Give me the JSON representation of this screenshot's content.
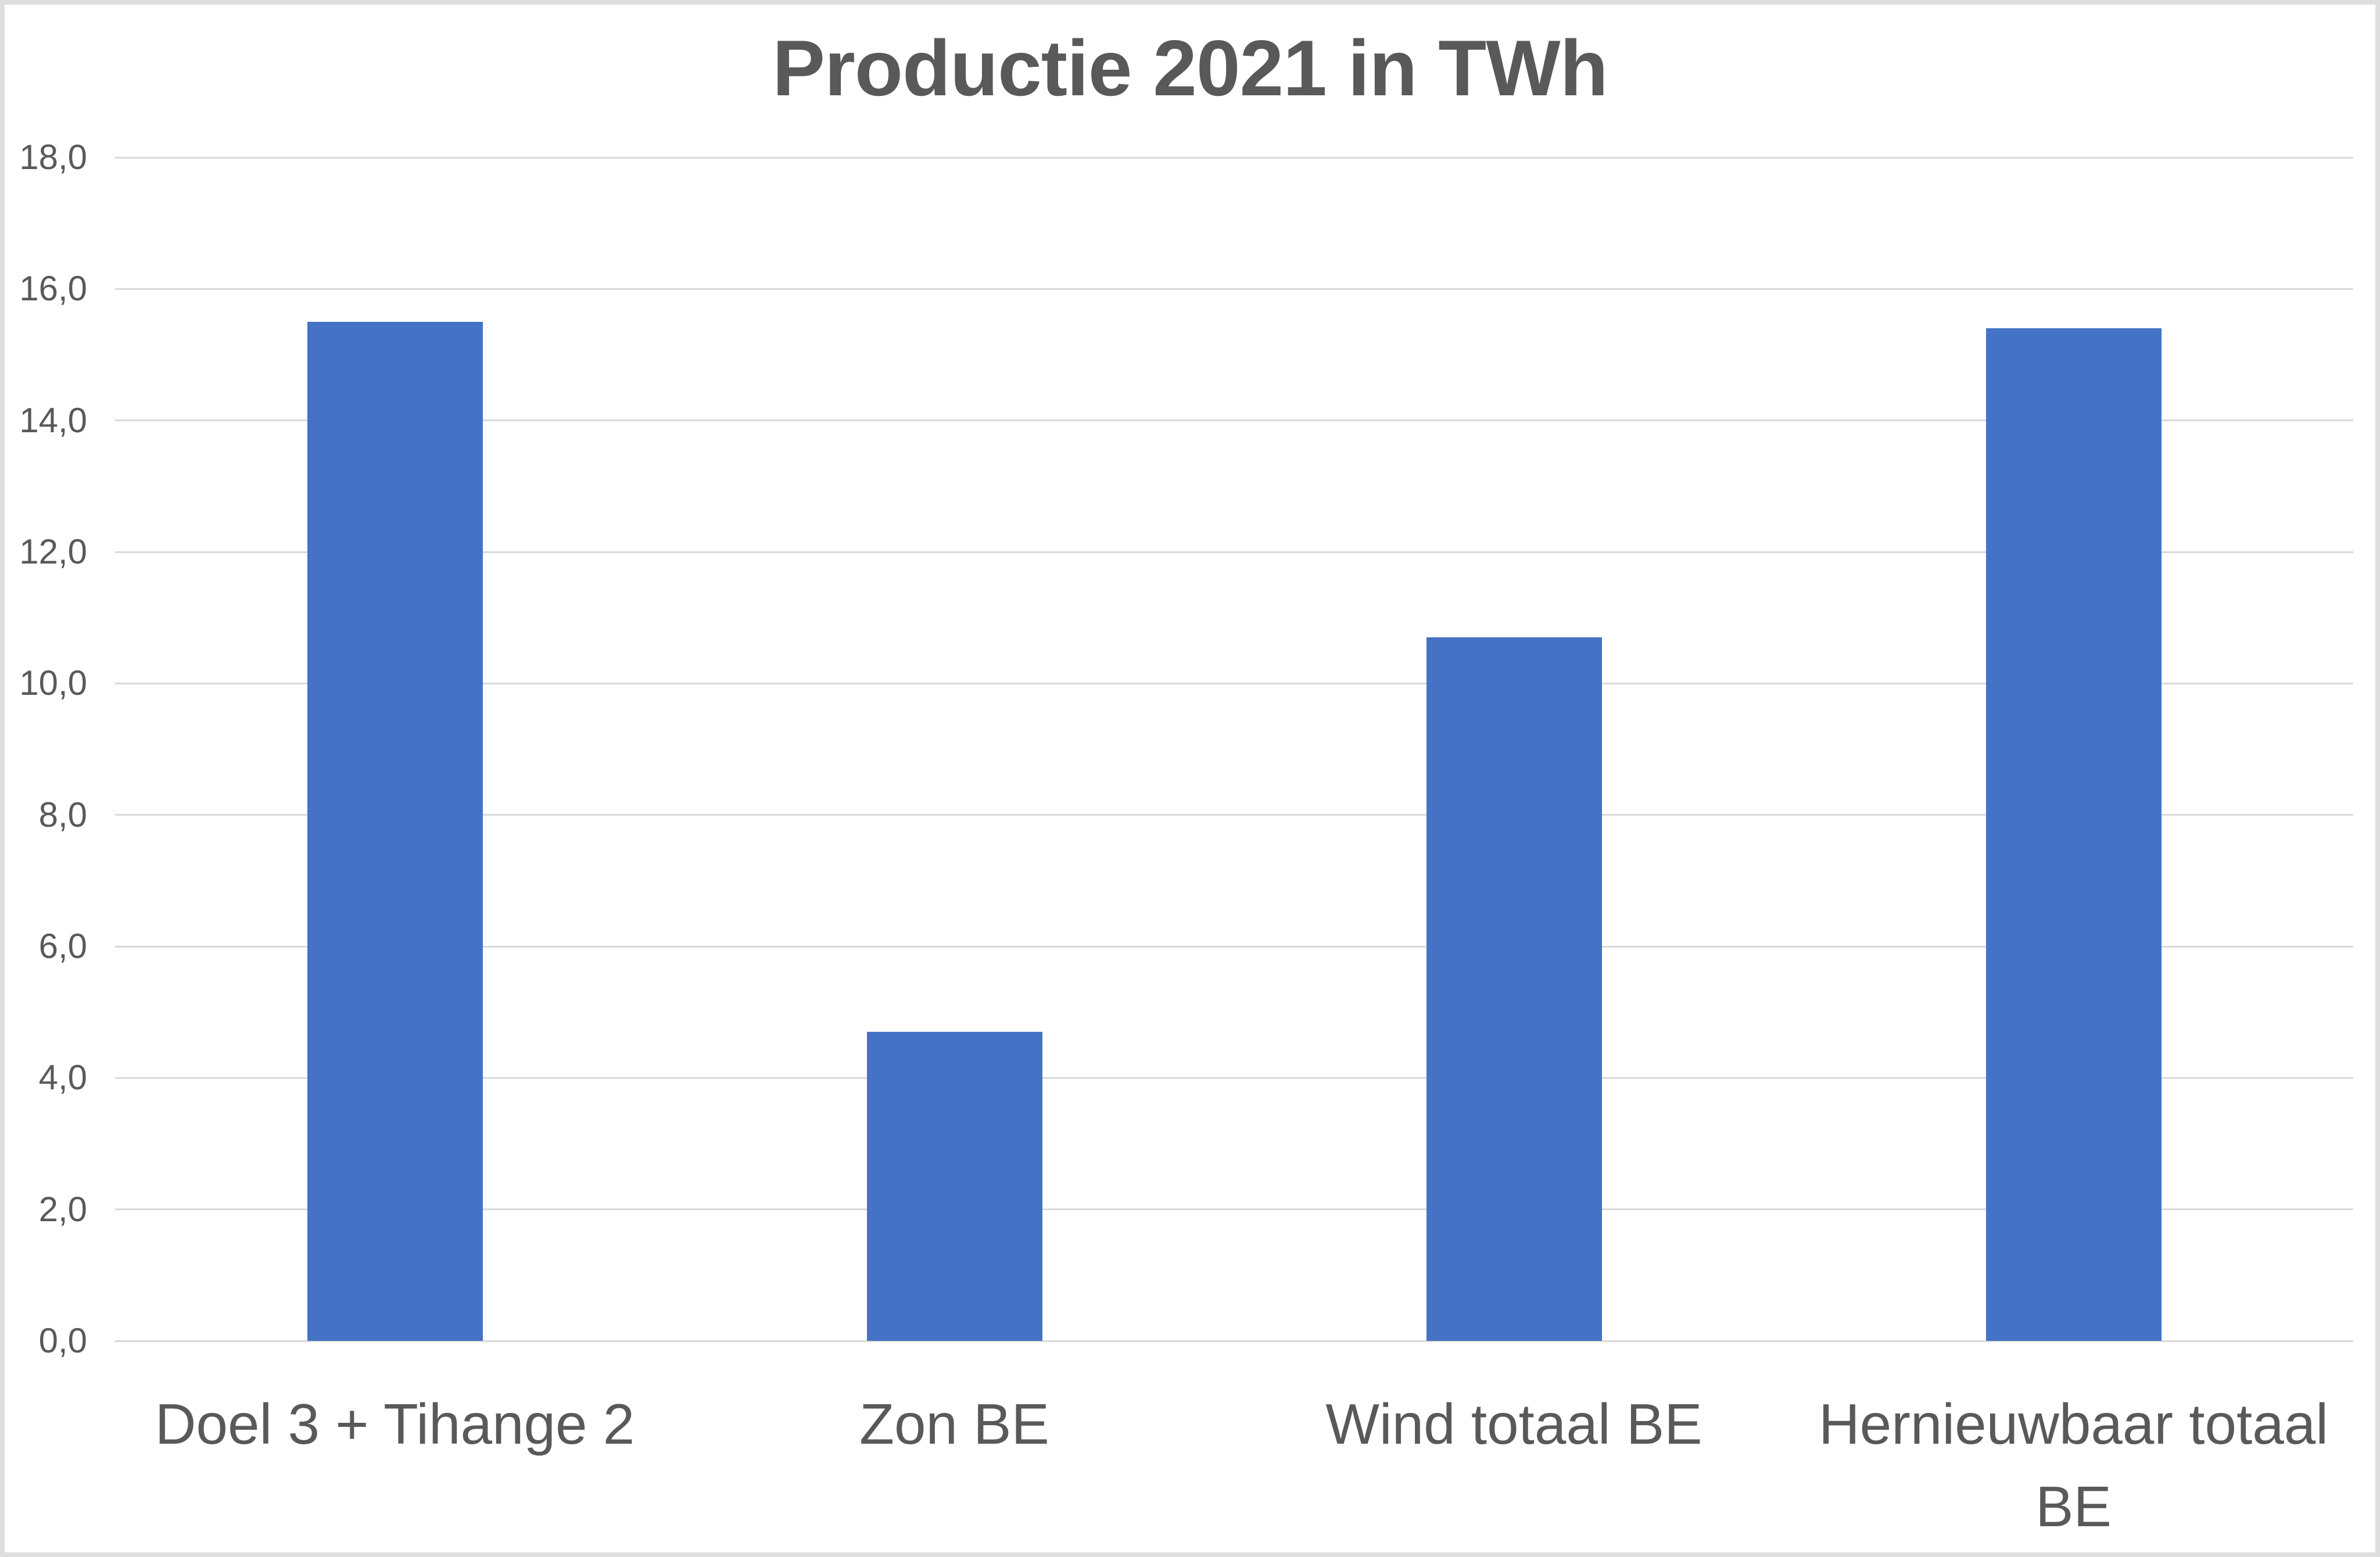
{
  "chart_data": {
    "type": "bar",
    "title": "Productie 2021 in TWh",
    "categories": [
      "Doel 3 + Tihange 2",
      "Zon BE",
      "Wind totaal BE",
      "Hernieuwbaar totaal BE"
    ],
    "values": [
      15.5,
      4.7,
      10.7,
      15.4
    ],
    "unit": "TWh",
    "xlabel": "",
    "ylabel": "",
    "ylim": [
      0,
      18
    ],
    "yticks": [
      0,
      2,
      4,
      6,
      8,
      10,
      12,
      14,
      16,
      18
    ],
    "ytick_labels": [
      "0,0",
      "2,0",
      "4,0",
      "6,0",
      "8,0",
      "10,0",
      "12,0",
      "14,0",
      "16,0",
      "18,0"
    ],
    "grid": true,
    "legend": false,
    "decimal_separator": ",",
    "colors": {
      "bar": "#4472c5",
      "text": "#595959",
      "gridline": "#d9d9d9",
      "frame_border": "#dedede",
      "background": "#ffffff"
    }
  }
}
